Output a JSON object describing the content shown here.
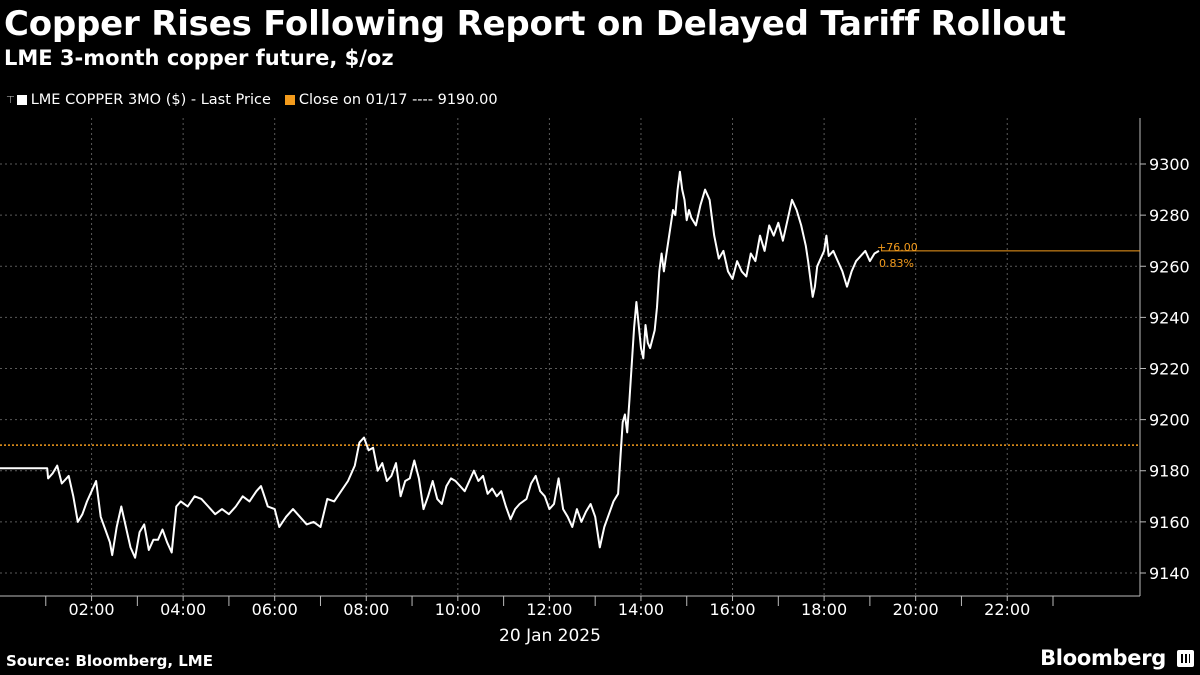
{
  "chart_data": {
    "type": "line",
    "title": "Copper Rises Following Report on Delayed Tariff Rollout",
    "subtitle": "LME 3-month copper future, $/oz",
    "legend": [
      {
        "label": "LME COPPER 3MO ($) - Last Price",
        "color": "#ffffff"
      },
      {
        "label": "Close on 01/17 ---- 9190.00",
        "color": "#f39b1c"
      }
    ],
    "reference_line": {
      "label": "Close on 01/17",
      "value": 9190.0
    },
    "last_annotation": {
      "change": "+76.00",
      "percent": "0.83%",
      "value": 9266
    },
    "x_date_label": "20 Jan 2025",
    "x_ticks": [
      "02:00",
      "04:00",
      "06:00",
      "08:00",
      "10:00",
      "12:00",
      "14:00",
      "16:00",
      "18:00",
      "20:00",
      "22:00"
    ],
    "x_tick_hours": [
      2,
      4,
      6,
      8,
      10,
      12,
      14,
      16,
      18,
      20,
      22
    ],
    "x_range_hours": [
      0,
      24.9
    ],
    "y_ticks": [
      9140,
      9160,
      9180,
      9200,
      9220,
      9240,
      9260,
      9280,
      9300
    ],
    "ylim": [
      9131,
      9318
    ],
    "series": [
      {
        "name": "LME COPPER 3MO ($) - Last Price",
        "points": [
          [
            0.0,
            9181
          ],
          [
            0.7,
            9181
          ],
          [
            1.03,
            9181
          ],
          [
            1.05,
            9177
          ],
          [
            1.15,
            9179
          ],
          [
            1.25,
            9182
          ],
          [
            1.35,
            9175
          ],
          [
            1.5,
            9178
          ],
          [
            1.6,
            9170
          ],
          [
            1.7,
            9160
          ],
          [
            1.8,
            9163
          ],
          [
            1.9,
            9168
          ],
          [
            2.0,
            9172
          ],
          [
            2.1,
            9176
          ],
          [
            2.2,
            9162
          ],
          [
            2.3,
            9157
          ],
          [
            2.4,
            9152
          ],
          [
            2.45,
            9147
          ],
          [
            2.55,
            9158
          ],
          [
            2.65,
            9166
          ],
          [
            2.75,
            9158
          ],
          [
            2.85,
            9150
          ],
          [
            2.95,
            9146
          ],
          [
            3.05,
            9156
          ],
          [
            3.15,
            9159
          ],
          [
            3.25,
            9149
          ],
          [
            3.35,
            9153
          ],
          [
            3.45,
            9153
          ],
          [
            3.55,
            9157
          ],
          [
            3.65,
            9152
          ],
          [
            3.75,
            9148
          ],
          [
            3.85,
            9166
          ],
          [
            3.95,
            9168
          ],
          [
            4.1,
            9166
          ],
          [
            4.25,
            9170
          ],
          [
            4.4,
            9169
          ],
          [
            4.55,
            9166
          ],
          [
            4.7,
            9163
          ],
          [
            4.85,
            9165
          ],
          [
            5.0,
            9163
          ],
          [
            5.15,
            9166
          ],
          [
            5.3,
            9170
          ],
          [
            5.45,
            9168
          ],
          [
            5.6,
            9172
          ],
          [
            5.7,
            9174
          ],
          [
            5.85,
            9166
          ],
          [
            6.0,
            9165
          ],
          [
            6.1,
            9158
          ],
          [
            6.25,
            9162
          ],
          [
            6.4,
            9165
          ],
          [
            6.55,
            9162
          ],
          [
            6.7,
            9159
          ],
          [
            6.85,
            9160
          ],
          [
            7.0,
            9158
          ],
          [
            7.15,
            9169
          ],
          [
            7.3,
            9168
          ],
          [
            7.45,
            9172
          ],
          [
            7.6,
            9176
          ],
          [
            7.75,
            9182
          ],
          [
            7.85,
            9191
          ],
          [
            7.95,
            9193
          ],
          [
            8.05,
            9188
          ],
          [
            8.15,
            9189
          ],
          [
            8.25,
            9180
          ],
          [
            8.35,
            9183
          ],
          [
            8.45,
            9176
          ],
          [
            8.55,
            9178
          ],
          [
            8.65,
            9183
          ],
          [
            8.75,
            9170
          ],
          [
            8.85,
            9176
          ],
          [
            8.95,
            9177
          ],
          [
            9.05,
            9184
          ],
          [
            9.15,
            9177
          ],
          [
            9.25,
            9165
          ],
          [
            9.35,
            9170
          ],
          [
            9.45,
            9176
          ],
          [
            9.55,
            9169
          ],
          [
            9.65,
            9167
          ],
          [
            9.75,
            9174
          ],
          [
            9.85,
            9177
          ],
          [
            9.95,
            9176
          ],
          [
            10.05,
            9174
          ],
          [
            10.15,
            9172
          ],
          [
            10.25,
            9176
          ],
          [
            10.35,
            9180
          ],
          [
            10.45,
            9176
          ],
          [
            10.55,
            9178
          ],
          [
            10.65,
            9171
          ],
          [
            10.75,
            9173
          ],
          [
            10.85,
            9170
          ],
          [
            10.95,
            9172
          ],
          [
            11.05,
            9166
          ],
          [
            11.15,
            9161
          ],
          [
            11.25,
            9165
          ],
          [
            11.35,
            9167
          ],
          [
            11.5,
            9169
          ],
          [
            11.6,
            9175
          ],
          [
            11.7,
            9178
          ],
          [
            11.8,
            9172
          ],
          [
            11.9,
            9170
          ],
          [
            12.0,
            9165
          ],
          [
            12.1,
            9167
          ],
          [
            12.2,
            9177
          ],
          [
            12.3,
            9165
          ],
          [
            12.4,
            9162
          ],
          [
            12.5,
            9158
          ],
          [
            12.6,
            9165
          ],
          [
            12.7,
            9160
          ],
          [
            12.8,
            9164
          ],
          [
            12.9,
            9167
          ],
          [
            13.0,
            9162
          ],
          [
            13.1,
            9150
          ],
          [
            13.2,
            9158
          ],
          [
            13.3,
            9163
          ],
          [
            13.4,
            9168
          ],
          [
            13.5,
            9171
          ],
          [
            13.55,
            9185
          ],
          [
            13.6,
            9199
          ],
          [
            13.65,
            9202
          ],
          [
            13.7,
            9195
          ],
          [
            13.75,
            9208
          ],
          [
            13.8,
            9222
          ],
          [
            13.85,
            9236
          ],
          [
            13.9,
            9246
          ],
          [
            13.95,
            9237
          ],
          [
            14.0,
            9228
          ],
          [
            14.05,
            9224
          ],
          [
            14.1,
            9237
          ],
          [
            14.15,
            9230
          ],
          [
            14.2,
            9228
          ],
          [
            14.3,
            9235
          ],
          [
            14.35,
            9244
          ],
          [
            14.4,
            9258
          ],
          [
            14.45,
            9265
          ],
          [
            14.5,
            9258
          ],
          [
            14.55,
            9264
          ],
          [
            14.6,
            9270
          ],
          [
            14.65,
            9276
          ],
          [
            14.7,
            9282
          ],
          [
            14.75,
            9280
          ],
          [
            14.8,
            9290
          ],
          [
            14.85,
            9297
          ],
          [
            14.9,
            9290
          ],
          [
            14.95,
            9286
          ],
          [
            15.0,
            9278
          ],
          [
            15.05,
            9282
          ],
          [
            15.1,
            9279
          ],
          [
            15.2,
            9276
          ],
          [
            15.3,
            9284
          ],
          [
            15.4,
            9290
          ],
          [
            15.5,
            9286
          ],
          [
            15.6,
            9272
          ],
          [
            15.7,
            9263
          ],
          [
            15.8,
            9266
          ],
          [
            15.9,
            9258
          ],
          [
            16.0,
            9255
          ],
          [
            16.1,
            9262
          ],
          [
            16.2,
            9258
          ],
          [
            16.3,
            9256
          ],
          [
            16.4,
            9265
          ],
          [
            16.5,
            9262
          ],
          [
            16.6,
            9272
          ],
          [
            16.7,
            9266
          ],
          [
            16.8,
            9276
          ],
          [
            16.9,
            9272
          ],
          [
            17.0,
            9277
          ],
          [
            17.1,
            9270
          ],
          [
            17.2,
            9278
          ],
          [
            17.3,
            9286
          ],
          [
            17.4,
            9282
          ],
          [
            17.5,
            9276
          ],
          [
            17.6,
            9268
          ],
          [
            17.65,
            9262
          ],
          [
            17.7,
            9255
          ],
          [
            17.75,
            9248
          ],
          [
            17.8,
            9252
          ],
          [
            17.85,
            9260
          ],
          [
            17.9,
            9262
          ],
          [
            18.0,
            9266
          ],
          [
            18.05,
            9272
          ],
          [
            18.1,
            9264
          ],
          [
            18.2,
            9266
          ],
          [
            18.3,
            9262
          ],
          [
            18.4,
            9258
          ],
          [
            18.5,
            9252
          ],
          [
            18.6,
            9258
          ],
          [
            18.7,
            9262
          ],
          [
            18.8,
            9264
          ],
          [
            18.9,
            9266
          ],
          [
            19.0,
            9262
          ],
          [
            19.1,
            9265
          ],
          [
            19.2,
            9266
          ]
        ]
      }
    ]
  },
  "source": "Source: Bloomberg, LME",
  "brand": "Bloomberg",
  "colors": {
    "background": "#000000",
    "line": "#ffffff",
    "reference": "#f39b1c",
    "grid": "#555555"
  }
}
